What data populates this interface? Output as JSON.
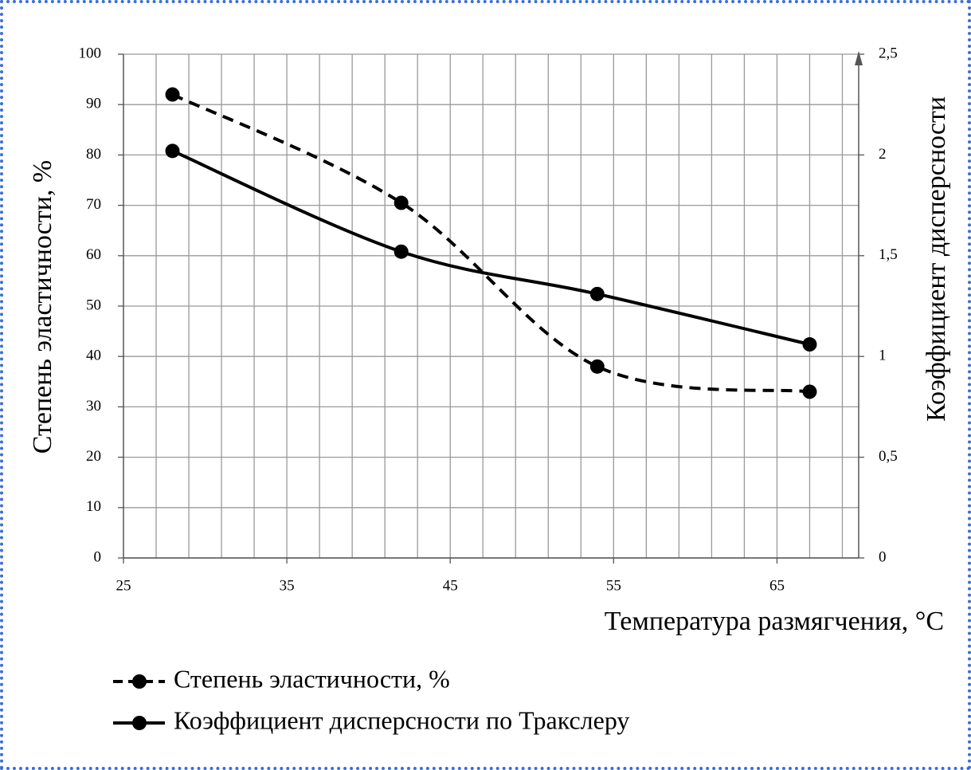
{
  "chart_data": {
    "type": "line",
    "x_label": "Температура размягчения, °C",
    "y_label": "Степень эластичности, %",
    "y2_label": "Коэффициент дисперсности",
    "xlim": [
      25,
      70
    ],
    "xticks": [
      25,
      35,
      45,
      55,
      65
    ],
    "ylim": [
      0,
      100
    ],
    "yticks": [
      0,
      10,
      20,
      30,
      40,
      50,
      60,
      70,
      80,
      90,
      100
    ],
    "y2lim": [
      0,
      2.5
    ],
    "y2ticks": [
      0,
      {
        "value": 0.5,
        "label": "0,5"
      },
      1,
      {
        "value": 1.5,
        "label": "1,5"
      },
      2,
      {
        "value": 2.5,
        "label": "2,5"
      }
    ],
    "grid": true,
    "legend": "bottom",
    "series": [
      {
        "name": "Степень эластичности, %",
        "color": "#000000",
        "dash": true,
        "x": [
          28,
          42,
          54,
          67
        ],
        "values": [
          92,
          70.5,
          38,
          33
        ]
      },
      {
        "name": "Коэффициент дисперсности по Тракслеру",
        "color": "#000000",
        "dash": false,
        "axis": "y2",
        "x": [
          28,
          42,
          54,
          67
        ],
        "values": [
          2.02,
          1.52,
          1.31,
          1.06
        ]
      }
    ]
  }
}
